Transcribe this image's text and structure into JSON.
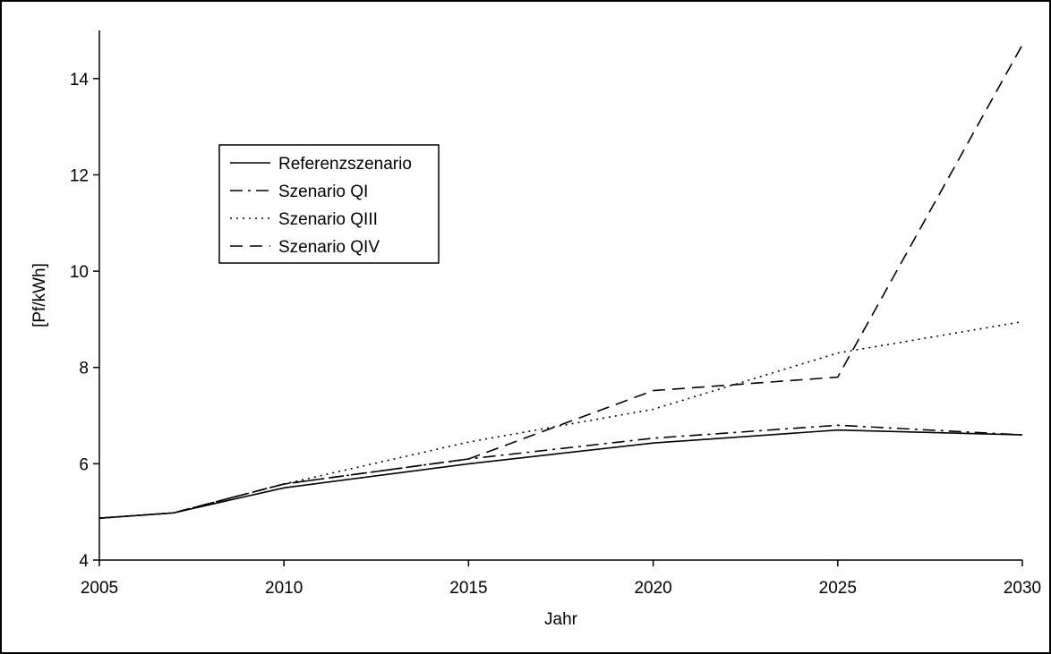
{
  "chart_data": {
    "type": "line",
    "title": "",
    "xlabel": "Jahr",
    "ylabel": "[Pf/kWh]",
    "xlim": [
      2005,
      2030
    ],
    "ylim": [
      4,
      15
    ],
    "xticks": [
      "2005",
      "2010",
      "2015",
      "2020",
      "2025",
      "2030"
    ],
    "yticks": [
      "4",
      "6",
      "8",
      "10",
      "12",
      "14"
    ],
    "grid": false,
    "legend_position": "upper-left",
    "series": [
      {
        "name": "Referenzszenario",
        "style": "solid",
        "color": "#000000",
        "x": [
          2005,
          2007,
          2010,
          2015,
          2020,
          2025,
          2030
        ],
        "y": [
          4.87,
          4.98,
          5.5,
          6.0,
          6.43,
          6.7,
          6.6
        ]
      },
      {
        "name": "Szenario QI",
        "style": "dashdot",
        "color": "#000000",
        "x": [
          2005,
          2007,
          2010,
          2015,
          2020,
          2025,
          2030
        ],
        "y": [
          4.87,
          4.98,
          5.58,
          6.1,
          6.53,
          6.8,
          6.6
        ]
      },
      {
        "name": "Szenario QIII",
        "style": "dotted",
        "color": "#000000",
        "x": [
          2005,
          2007,
          2010,
          2015,
          2020,
          2025,
          2030
        ],
        "y": [
          4.87,
          4.98,
          5.58,
          6.45,
          7.13,
          8.3,
          8.95
        ]
      },
      {
        "name": "Szenario QIV",
        "style": "dashed",
        "color": "#000000",
        "x": [
          2005,
          2007,
          2010,
          2015,
          2020,
          2025,
          2030
        ],
        "y": [
          4.87,
          4.98,
          5.58,
          6.1,
          7.52,
          7.8,
          14.7
        ]
      }
    ]
  }
}
